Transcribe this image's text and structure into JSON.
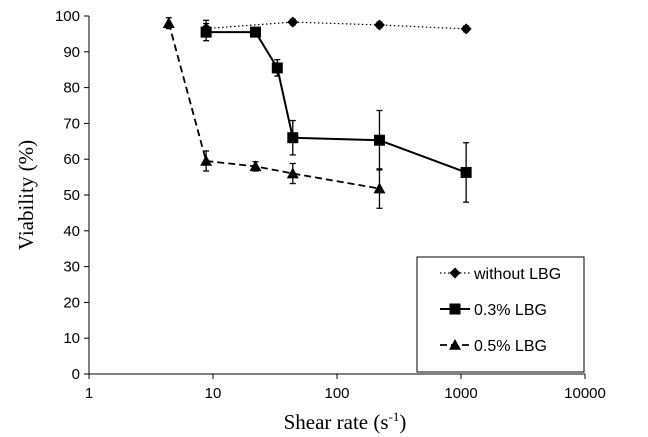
{
  "chart_data": {
    "type": "line",
    "x_scale": "log",
    "xlim": [
      1,
      10000
    ],
    "ylim": [
      0,
      100
    ],
    "x_ticks": [
      1,
      10,
      100,
      1000,
      10000
    ],
    "y_ticks": [
      0,
      10,
      20,
      30,
      40,
      50,
      60,
      70,
      80,
      90,
      100
    ],
    "x_tick_labels": [
      "1",
      "10",
      "100",
      "1000",
      "10000"
    ],
    "y_tick_labels": [
      "0",
      "10",
      "20",
      "30",
      "40",
      "50",
      "60",
      "70",
      "80",
      "90",
      "100"
    ],
    "xlabel": "Shear rate (s",
    "xlabel_sup": "-1",
    "xlabel_end": ")",
    "ylabel": "Viability (%)",
    "grid": false,
    "legend_position": "bottom-right",
    "series": [
      {
        "name": "without LBG",
        "marker": "diamond",
        "line_style": "dotted",
        "color": "#000000",
        "x": [
          8.8,
          44,
          220,
          1100
        ],
        "y": [
          96.5,
          98.3,
          97.5,
          96.4
        ],
        "err": [
          2.3,
          0.8,
          0.8,
          0.8
        ]
      },
      {
        "name": "0.3% LBG",
        "marker": "square",
        "line_style": "solid",
        "color": "#000000",
        "x": [
          8.8,
          22,
          33,
          44,
          220,
          1100
        ],
        "y": [
          95.5,
          95.5,
          85.5,
          66,
          65.3,
          56.3
        ],
        "err": [
          2.4,
          0.8,
          2.3,
          4.8,
          8.3,
          8.3
        ]
      },
      {
        "name": "0.5% LBG",
        "marker": "triangle",
        "line_style": "dashed",
        "color": "#000000",
        "x": [
          4.4,
          8.8,
          22,
          44,
          220
        ],
        "y": [
          98,
          59.5,
          58,
          56,
          51.8
        ],
        "err": [
          1.5,
          2.8,
          1.3,
          2.8,
          5.5
        ]
      }
    ]
  }
}
